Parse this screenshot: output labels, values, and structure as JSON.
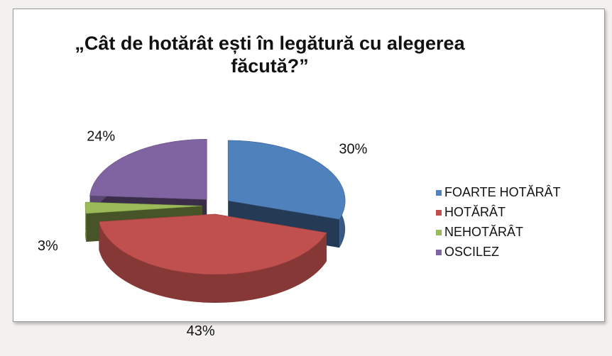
{
  "chart_data": {
    "type": "pie",
    "title": "„Cât de hotărât ești în legătură cu alegerea făcută?”",
    "categories": [
      "FOARTE HOTĂRÂT",
      "HOTĂRÂT",
      "NEHOTĂRÂT",
      "OSCILEZ"
    ],
    "values": [
      30,
      43,
      3,
      24
    ],
    "value_labels": [
      "30%",
      "43%",
      "3%",
      "24%"
    ],
    "colors": [
      "#4f81bd",
      "#c0504d",
      "#9bbb59",
      "#8064a2"
    ],
    "legend": "right",
    "three_d": true,
    "exploded": true
  }
}
